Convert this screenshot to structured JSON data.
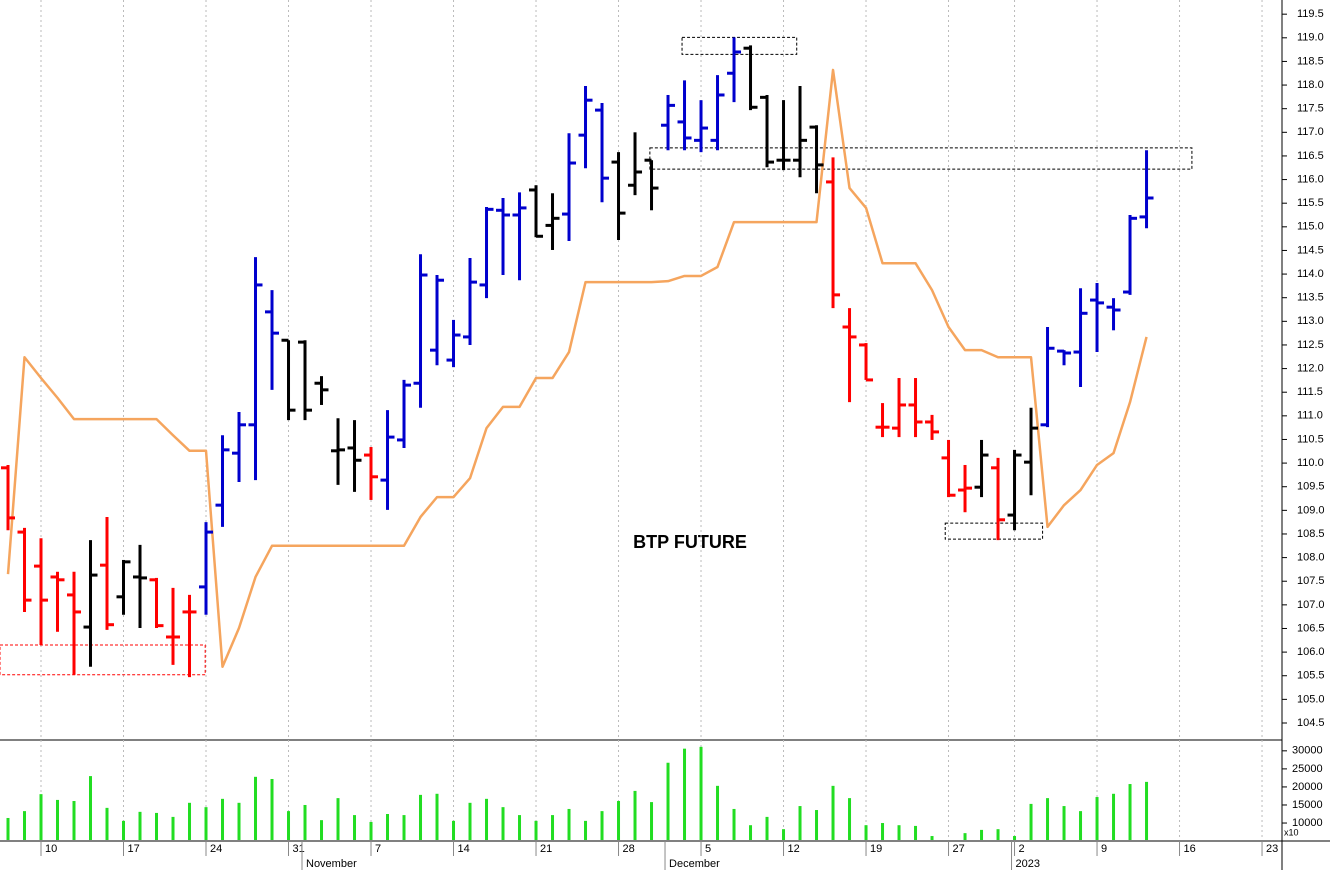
{
  "chart_data": [
    {
      "type": "ohlc",
      "title": "BTP FUTURE",
      "open": [
        109.9,
        108.54,
        107.82,
        107.59,
        107.21,
        106.53,
        107.84,
        107.17,
        107.59,
        107.53,
        106.32,
        106.85,
        107.38,
        109.11,
        110.21,
        110.81,
        113.2,
        112.6,
        112.56,
        111.69,
        110.26,
        110.32,
        110.17,
        109.64,
        110.49,
        111.69,
        112.39,
        112.18,
        112.67,
        113.77,
        115.35,
        115.25,
        115.78,
        115.03,
        115.27,
        116.94,
        117.47,
        116.37,
        115.88,
        116.41,
        117.15,
        117.22,
        116.83,
        116.83,
        118.25,
        118.78,
        117.74,
        116.41,
        116.41,
        117.11,
        115.95,
        112.88,
        112.5,
        110.76,
        110.74,
        111.23,
        110.87,
        110.11,
        109.43,
        109.49,
        109.9,
        108.9,
        110.02,
        110.81,
        112.37,
        112.35,
        113.45,
        113.3,
        113.62,
        115.21
      ],
      "high": [
        109.96,
        108.63,
        108.41,
        107.7,
        107.7,
        108.37,
        108.86,
        107.95,
        108.27,
        107.57,
        107.36,
        107.21,
        108.75,
        110.59,
        111.08,
        114.36,
        113.66,
        112.6,
        112.6,
        111.84,
        110.95,
        110.91,
        110.34,
        111.12,
        111.76,
        114.42,
        113.98,
        113.03,
        114.34,
        115.42,
        115.61,
        115.73,
        115.88,
        115.71,
        116.98,
        117.98,
        117.62,
        116.58,
        117.0,
        116.41,
        117.79,
        118.1,
        117.68,
        118.21,
        119.01,
        118.84,
        117.79,
        117.68,
        117.98,
        117.15,
        116.47,
        113.28,
        112.54,
        111.27,
        111.8,
        111.8,
        111.02,
        110.49,
        109.96,
        110.49,
        110.11,
        110.28,
        111.17,
        112.88,
        112.39,
        113.7,
        113.81,
        113.49,
        115.25,
        116.62
      ],
      "low": [
        108.58,
        106.85,
        106.15,
        106.43,
        105.52,
        105.69,
        106.47,
        106.79,
        106.51,
        106.51,
        105.73,
        105.47,
        106.79,
        108.65,
        109.6,
        109.64,
        111.55,
        110.91,
        110.91,
        111.23,
        109.54,
        109.39,
        109.22,
        109.01,
        110.32,
        111.17,
        112.07,
        112.03,
        112.5,
        113.49,
        113.98,
        113.87,
        114.78,
        114.51,
        114.7,
        116.24,
        115.52,
        114.72,
        115.67,
        115.35,
        116.62,
        116.62,
        116.58,
        116.62,
        117.64,
        117.47,
        116.26,
        116.2,
        116.05,
        115.71,
        113.28,
        111.29,
        111.76,
        110.55,
        110.55,
        110.55,
        110.49,
        109.28,
        108.96,
        109.28,
        108.37,
        108.58,
        109.32,
        110.76,
        112.07,
        111.61,
        112.35,
        112.81,
        113.56,
        114.97
      ],
      "close": [
        108.84,
        107.1,
        107.1,
        107.53,
        106.85,
        107.63,
        106.58,
        107.91,
        107.57,
        106.56,
        106.32,
        106.85,
        108.54,
        110.28,
        110.81,
        113.77,
        112.75,
        111.12,
        111.12,
        111.55,
        110.28,
        110.06,
        109.71,
        110.55,
        111.65,
        113.98,
        113.87,
        112.71,
        113.83,
        115.37,
        115.25,
        115.4,
        114.8,
        115.18,
        116.35,
        117.68,
        116.03,
        115.29,
        116.16,
        115.82,
        117.57,
        116.88,
        117.09,
        117.79,
        118.7,
        117.53,
        116.37,
        116.41,
        116.83,
        116.31,
        113.56,
        112.67,
        111.76,
        110.76,
        111.23,
        110.87,
        110.66,
        109.32,
        109.47,
        110.17,
        108.8,
        110.17,
        110.74,
        112.43,
        112.33,
        113.17,
        113.39,
        113.24,
        115.18,
        115.61
      ],
      "bar_colors": [
        "red",
        "red",
        "red",
        "red",
        "red",
        "black",
        "red",
        "black",
        "black",
        "red",
        "red",
        "red",
        "mediumblue",
        "mediumblue",
        "mediumblue",
        "mediumblue",
        "mediumblue",
        "black",
        "black",
        "black",
        "black",
        "black",
        "red",
        "mediumblue",
        "mediumblue",
        "mediumblue",
        "mediumblue",
        "mediumblue",
        "mediumblue",
        "mediumblue",
        "mediumblue",
        "mediumblue",
        "black",
        "black",
        "mediumblue",
        "mediumblue",
        "mediumblue",
        "black",
        "black",
        "black",
        "mediumblue",
        "mediumblue",
        "mediumblue",
        "mediumblue",
        "mediumblue",
        "black",
        "black",
        "black",
        "black",
        "black",
        "red",
        "red",
        "red",
        "red",
        "red",
        "red",
        "red",
        "red",
        "red",
        "black",
        "red",
        "black",
        "black",
        "mediumblue",
        "mediumblue",
        "mediumblue",
        "mediumblue",
        "mediumblue",
        "mediumblue",
        "mediumblue"
      ],
      "line": {
        "color": "#f5a55e",
        "values": [
          107.65,
          112.24,
          111.8,
          111.38,
          110.93,
          110.93,
          110.93,
          110.93,
          110.93,
          110.93,
          110.59,
          110.26,
          110.26,
          105.69,
          106.51,
          107.59,
          108.25,
          108.25,
          108.25,
          108.25,
          108.25,
          108.25,
          108.25,
          108.25,
          108.25,
          108.86,
          109.28,
          109.28,
          109.68,
          110.74,
          111.19,
          111.19,
          111.8,
          111.8,
          112.35,
          113.83,
          113.83,
          113.83,
          113.83,
          113.83,
          113.85,
          113.96,
          113.96,
          114.15,
          115.1,
          115.1,
          115.1,
          115.1,
          115.1,
          115.1,
          118.32,
          115.82,
          115.4,
          114.23,
          114.23,
          114.23,
          113.66,
          112.88,
          112.39,
          112.39,
          112.24,
          112.24,
          112.24,
          108.65,
          109.11,
          109.43,
          109.96,
          110.21,
          111.29,
          112.67
        ]
      },
      "boxes": [
        {
          "x": [
            -0.485,
            11.95
          ],
          "y": [
            105.52,
            106.15
          ],
          "color": "red"
        },
        {
          "x": [
            40.85,
            47.8
          ],
          "y": [
            118.65,
            119.01
          ],
          "color": "black"
        },
        {
          "x": [
            38.9,
            71.75
          ],
          "y": [
            116.22,
            116.67
          ],
          "color": "black"
        },
        {
          "x": [
            56.8,
            62.7
          ],
          "y": [
            108.39,
            108.73
          ],
          "color": "black"
        }
      ],
      "xlim": [
        -0.485,
        77.21
      ],
      "ylim": [
        104.14,
        119.8
      ],
      "yticks": [
        104.5,
        {
          "value": 105,
          "label": "105.0"
        },
        105.5,
        {
          "value": 106,
          "label": "106.0"
        },
        106.5,
        {
          "value": 107,
          "label": "107.0"
        },
        107.5,
        {
          "value": 108,
          "label": "108.0"
        },
        108.5,
        {
          "value": 109,
          "label": "109.0"
        },
        109.5,
        {
          "value": 110,
          "label": "110.0"
        },
        110.5,
        {
          "value": 111,
          "label": "111.0"
        },
        111.5,
        {
          "value": 112,
          "label": "112.0"
        },
        112.5,
        {
          "value": 113,
          "label": "113.0"
        },
        113.5,
        {
          "value": 114,
          "label": "114.0"
        },
        114.5,
        {
          "value": 115,
          "label": "115.0"
        },
        115.5,
        {
          "value": 116,
          "label": "116.0"
        },
        116.5,
        {
          "value": 117,
          "label": "117.0"
        },
        117.5,
        {
          "value": 118,
          "label": "118.0"
        },
        118.5,
        {
          "value": 119,
          "label": "119.0"
        },
        119.5
      ]
    },
    {
      "type": "bar",
      "color": "#22dd22",
      "unit_label": "x10",
      "values": [
        11400,
        13300,
        18000,
        16400,
        16100,
        23000,
        14200,
        10600,
        13100,
        12800,
        11700,
        15600,
        14400,
        16700,
        15600,
        22800,
        22200,
        13300,
        15000,
        10800,
        16900,
        12200,
        10300,
        12500,
        12200,
        17800,
        18100,
        10600,
        15600,
        16700,
        14400,
        12200,
        10600,
        12200,
        13900,
        10600,
        13300,
        16100,
        18900,
        15800,
        26700,
        30600,
        31100,
        20300,
        13900,
        9400,
        11700,
        8300,
        14700,
        13600,
        20300,
        16900,
        9400,
        10000,
        9400,
        9200,
        6400,
        5300,
        7200,
        8100,
        8300,
        6400,
        15300,
        16900,
        14700,
        13300,
        17200,
        18100,
        20800,
        21400
      ],
      "xlim": [
        -0.485,
        77.21
      ],
      "ylim": [
        5300,
        33000
      ],
      "yticks": [
        10000,
        15000,
        20000,
        25000,
        30000
      ],
      "xticks": [
        {
          "value": 2,
          "label": "10"
        },
        {
          "value": 7,
          "label": "17"
        },
        {
          "value": 12,
          "label": "24"
        },
        {
          "value": 17,
          "label": "31"
        },
        {
          "value": 22,
          "label": "7"
        },
        {
          "value": 27,
          "label": "14"
        },
        {
          "value": 32,
          "label": "21"
        },
        {
          "value": 37,
          "label": "28"
        },
        {
          "value": 42,
          "label": "5"
        },
        {
          "value": 47,
          "label": "12"
        },
        {
          "value": 52,
          "label": "19"
        },
        {
          "value": 57,
          "label": "27"
        },
        {
          "value": 61,
          "label": "2"
        },
        {
          "value": 66,
          "label": "9"
        },
        {
          "value": 71,
          "label": "16"
        },
        {
          "value": 76,
          "label": "23"
        }
      ],
      "month_ticks": [
        {
          "value": 18,
          "label": "November"
        },
        {
          "value": 40,
          "label": "December"
        },
        {
          "value": 61,
          "label": "2023"
        }
      ],
      "grid": true
    }
  ]
}
